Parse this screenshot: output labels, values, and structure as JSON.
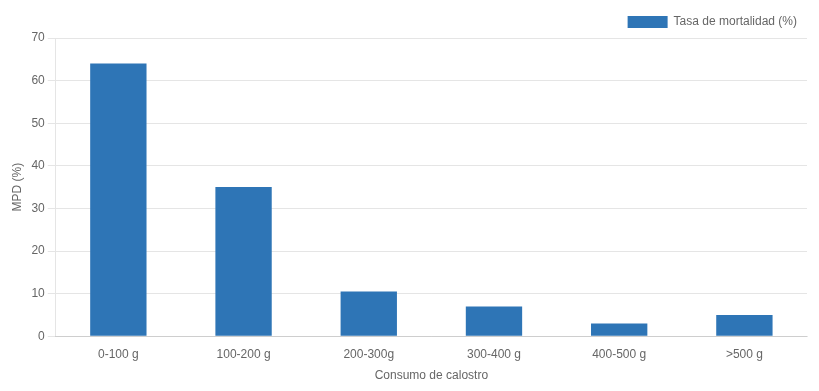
{
  "chart_data": {
    "type": "bar",
    "xlabel": "Consumo de calostro",
    "ylabel": "MPD (%)",
    "categories": [
      "0-100 g",
      "100-200 g",
      "200-300g",
      "300-400 g",
      "400-500 g",
      ">500 g"
    ],
    "series": [
      {
        "name": "Tasa de mortalidad (%)",
        "color": "#2E75B6",
        "values": [
          64,
          35,
          10.5,
          7,
          3,
          5
        ]
      }
    ],
    "ylim": [
      0,
      70
    ],
    "yticks": [
      0,
      10,
      20,
      30,
      40,
      50,
      60,
      70
    ],
    "grid": true,
    "legend": "upper right"
  }
}
